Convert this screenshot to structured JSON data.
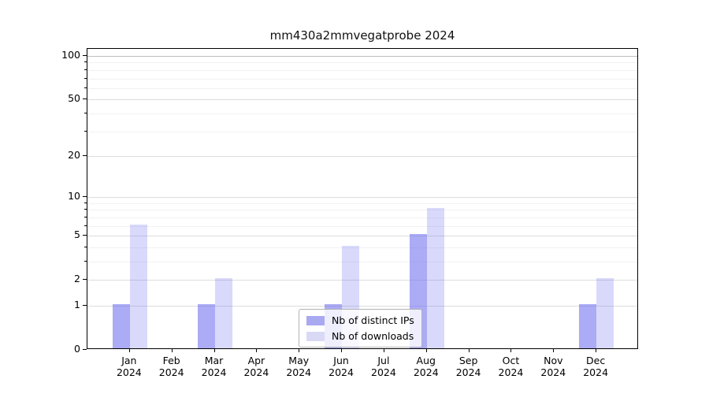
{
  "chart_data": {
    "type": "bar",
    "title": "mm430a2mmvegatprobe 2024",
    "yscale": "log1p",
    "grid": "on",
    "legend_position": "lower-center-inside",
    "categories": [
      "Jan",
      "Feb",
      "Mar",
      "Apr",
      "May",
      "Jun",
      "Jul",
      "Aug",
      "Sep",
      "Oct",
      "Nov",
      "Dec"
    ],
    "x_tick_year": "2024",
    "series": [
      {
        "name": "Nb of distinct IPs",
        "values": [
          1,
          0,
          1,
          0,
          0,
          1,
          0,
          5,
          0,
          0,
          0,
          1
        ],
        "bar_color": "rgba(110,110,240,0.58)",
        "swatch_color": "#a9a9f2"
      },
      {
        "name": "Nb of downloads",
        "values": [
          6,
          0,
          2,
          0,
          0,
          4,
          0,
          8,
          0,
          0,
          0,
          2
        ],
        "bar_color": "rgba(110,110,240,0.26)",
        "swatch_color": "#d9d9f6"
      }
    ],
    "y_major_ticks": [
      0,
      1,
      2,
      5,
      10,
      20,
      50,
      100
    ],
    "y_minor_ticks": [
      3,
      4,
      6,
      7,
      8,
      9,
      30,
      40,
      60,
      70,
      80,
      90
    ],
    "ylim": [
      0,
      112
    ],
    "colors": {
      "major_grid": "#dcdcdc",
      "top_major_grid": "#bdbdbd",
      "minor_grid": "#f1f1f1",
      "axis": "#000000"
    }
  }
}
